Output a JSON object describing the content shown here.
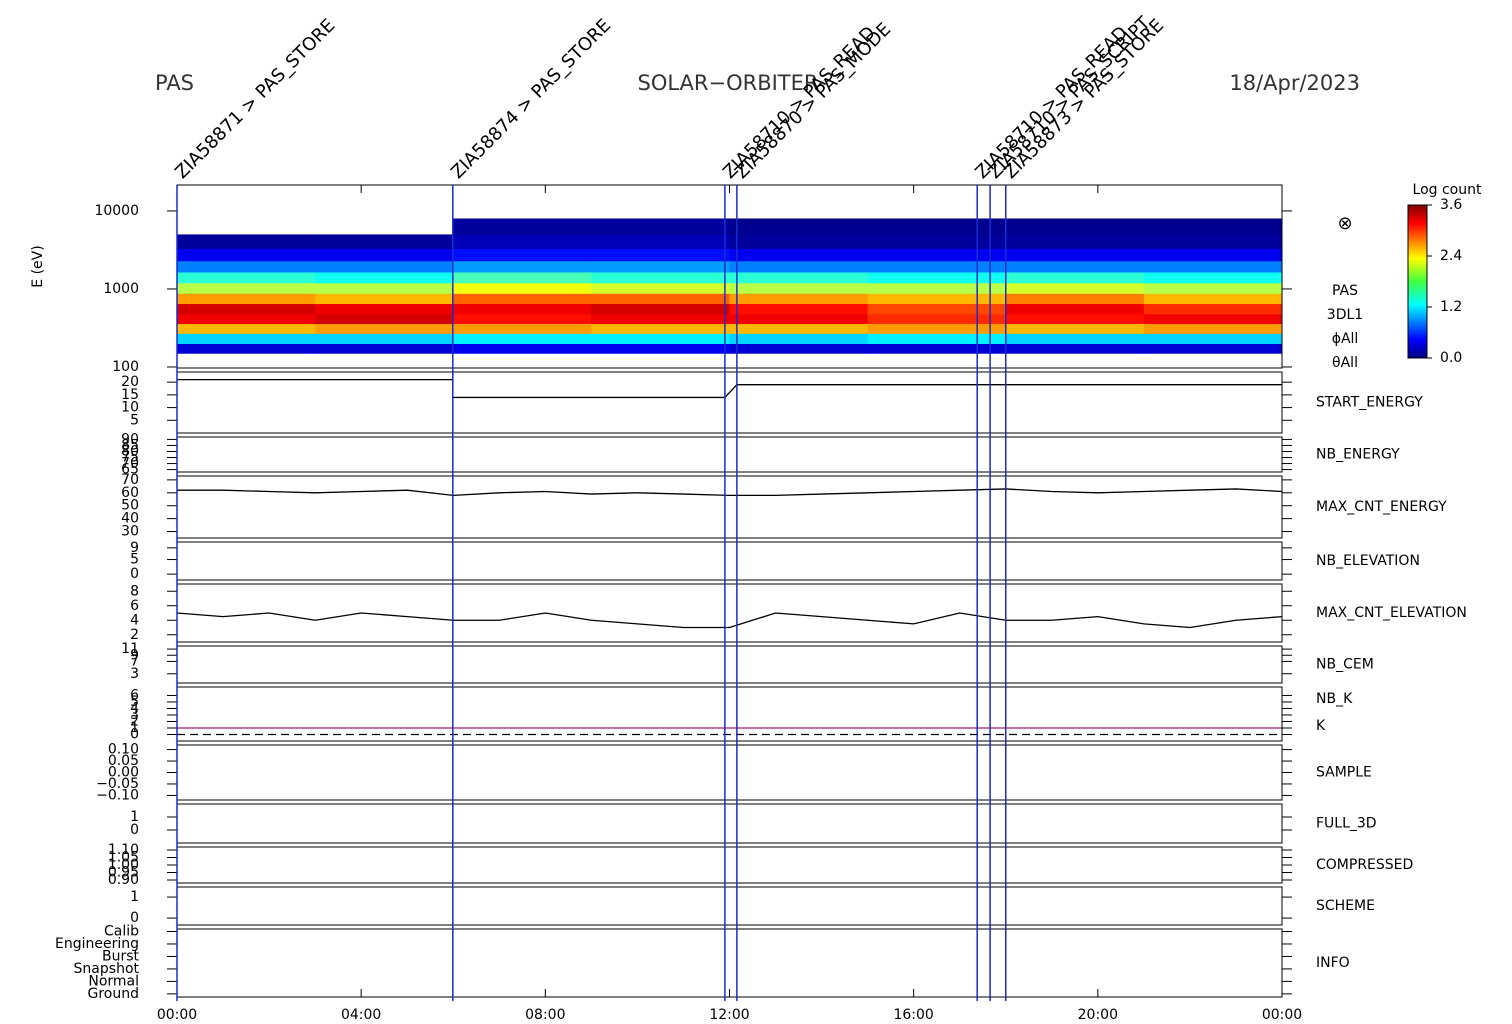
{
  "header": {
    "left": "PAS",
    "center": "SOLAR−ORBITER",
    "right": "18/Apr/2023"
  },
  "time_axis": {
    "xlim": [
      0,
      24
    ],
    "xticks": [
      {
        "value": 0,
        "label": "00:00"
      },
      {
        "value": 4,
        "label": "04:00"
      },
      {
        "value": 8,
        "label": "08:00"
      },
      {
        "value": 12,
        "label": "12:00"
      },
      {
        "value": 16,
        "label": "16:00"
      },
      {
        "value": 20,
        "label": "20:00"
      },
      {
        "value": 24,
        "label": "00:00"
      }
    ]
  },
  "events": [
    {
      "x": 0.0,
      "label": "ZIA58871 > PAS_STORE"
    },
    {
      "x": 5.99,
      "label": "ZIA58874 > PAS_STORE"
    },
    {
      "x": 11.9,
      "label": "ZIA58710 > PAS_READ"
    },
    {
      "x": 12.16,
      "label": "ZIA58870 > PAS_MODE"
    },
    {
      "x": 17.38,
      "label": "ZIA58710 > PAS_READ"
    },
    {
      "x": 17.66,
      "label": "ZIA58710 > PAS_SCRIPT"
    },
    {
      "x": 18.0,
      "label": "ZIA58873 > PAS_STORE"
    }
  ],
  "colorbar": {
    "title": "Log count",
    "ylim": [
      0,
      3.6
    ],
    "ticks": [
      {
        "value": 0,
        "label": "0.0"
      },
      {
        "value": 1.2,
        "label": "1.2"
      },
      {
        "value": 2.4,
        "label": "2.4"
      },
      {
        "value": 3.6,
        "label": "3.6"
      }
    ]
  },
  "chart_data": [
    {
      "type": "heatmap",
      "ylabel": "E (eV)",
      "log": true,
      "ylim": [
        97,
        21500
      ],
      "yticks": [
        100,
        1000,
        10000
      ],
      "labels": [
        "PAS",
        "3DL1",
        "ϕAll",
        "θAll"
      ],
      "label_color": "#000000",
      "x": [
        0,
        3,
        6,
        9,
        12,
        15,
        18,
        21,
        24
      ],
      "y": [
        150,
        200,
        270,
        360,
        480,
        650,
        880,
        1200,
        1650,
        2300,
        3300,
        5000,
        8000
      ],
      "z": [
        [
          0.3,
          1.2,
          2.5,
          3.2,
          3.3,
          2.6,
          2.0,
          1.5,
          0.9,
          0.4,
          0.1,
          null
        ],
        [
          0.3,
          1.2,
          2.6,
          3.3,
          3.2,
          2.5,
          2.0,
          1.4,
          0.9,
          0.4,
          0.1,
          null
        ],
        [
          0.4,
          1.3,
          2.6,
          3.1,
          3.2,
          2.8,
          2.2,
          1.6,
          1.0,
          0.5,
          0.2,
          0.1
        ],
        [
          0.4,
          1.3,
          2.5,
          3.2,
          3.3,
          2.8,
          2.1,
          1.5,
          1.0,
          0.5,
          0.2,
          0.1
        ],
        [
          0.3,
          1.2,
          2.5,
          3.2,
          3.1,
          2.6,
          2.0,
          1.5,
          0.9,
          0.4,
          0.1,
          0.05
        ],
        [
          0.3,
          1.3,
          2.6,
          3.0,
          2.9,
          2.5,
          2.0,
          1.4,
          0.9,
          0.4,
          0.1,
          0.05
        ],
        [
          0.3,
          1.2,
          2.5,
          3.1,
          3.2,
          2.7,
          2.1,
          1.5,
          0.9,
          0.4,
          0.1,
          0.05
        ],
        [
          0.3,
          1.2,
          2.6,
          3.2,
          3.0,
          2.5,
          2.0,
          1.4,
          0.9,
          0.4,
          0.1,
          0.05
        ]
      ]
    },
    {
      "type": "line",
      "ylim": [
        0,
        24
      ],
      "yticks": [
        5,
        10,
        15,
        20
      ],
      "labels": [
        "START_ENERGY"
      ],
      "label_color": "#000000",
      "series": [
        {
          "color": "#000000",
          "x": [
            0,
            5.99,
            5.99,
            11.9,
            12.16,
            24
          ],
          "values": [
            21,
            21,
            14,
            14,
            19,
            19
          ]
        }
      ]
    },
    {
      "type": "line",
      "ylim": [
        63,
        92
      ],
      "yticks": [
        65,
        70,
        75,
        80,
        85,
        90
      ],
      "labels": [
        "NB_ENERGY"
      ],
      "label_color": "#2020c0",
      "series": []
    },
    {
      "type": "line",
      "ylim": [
        25,
        73
      ],
      "yticks": [
        30,
        40,
        50,
        60,
        70
      ],
      "labels": [
        "MAX_CNT_ENERGY"
      ],
      "label_color": "#000000",
      "series": [
        {
          "color": "#000000",
          "x": [
            0,
            1,
            2,
            3,
            4,
            5,
            6,
            7,
            8,
            9,
            10,
            11,
            12,
            13,
            14,
            15,
            16,
            17,
            18,
            19,
            20,
            21,
            22,
            23,
            24
          ],
          "values": [
            62,
            62,
            61,
            60,
            61,
            62,
            58,
            60,
            61,
            59,
            60,
            59,
            58,
            58,
            59,
            60,
            61,
            62,
            63,
            61,
            60,
            61,
            62,
            63,
            61
          ]
        }
      ]
    },
    {
      "type": "line",
      "ylim": [
        -2,
        11
      ],
      "yticks": [
        0,
        5,
        9
      ],
      "labels": [
        "NB_ELEVATION"
      ],
      "label_color": "#2020c0",
      "series": []
    },
    {
      "type": "line",
      "ylim": [
        1,
        9
      ],
      "yticks": [
        2,
        4,
        6,
        8
      ],
      "labels": [
        "MAX_CNT_ELEVATION"
      ],
      "label_color": "#000000",
      "series": [
        {
          "color": "#000000",
          "x": [
            0,
            1,
            2,
            3,
            4,
            5,
            6,
            7,
            8,
            9,
            10,
            11,
            12,
            13,
            14,
            15,
            16,
            17,
            18,
            19,
            20,
            21,
            22,
            23,
            24
          ],
          "values": [
            5,
            4.5,
            5,
            4,
            5,
            4.5,
            4,
            4,
            5,
            4,
            3.5,
            3,
            3,
            5,
            4.5,
            4,
            3.5,
            5,
            4,
            4,
            4.5,
            3.5,
            3,
            4,
            4.5
          ]
        }
      ]
    },
    {
      "type": "line",
      "ylim": [
        0,
        12
      ],
      "yticks": [
        3,
        7,
        9,
        11
      ],
      "labels": [
        "NB_CEM"
      ],
      "label_color": "#2020c0",
      "series": []
    },
    {
      "type": "line",
      "ylim": [
        -1,
        7.3
      ],
      "yticks": [
        0,
        1,
        2,
        3,
        4,
        5,
        6
      ],
      "labels": [
        "NB_K",
        "K"
      ],
      "label_color": [
        "#d02020",
        "#2020c0"
      ],
      "series": [
        {
          "color": "#a0206a",
          "x": [
            0,
            24
          ],
          "values": [
            1,
            1
          ]
        },
        {
          "color": "#000000",
          "dash": true,
          "x": [
            0,
            24
          ],
          "values": [
            0,
            0
          ]
        }
      ]
    },
    {
      "type": "line",
      "ylim": [
        -0.12,
        0.12
      ],
      "yticks": [
        {
          "value": 0.1,
          "label": "0.10"
        },
        {
          "value": 0.05,
          "label": "0.05"
        },
        {
          "value": 0,
          "label": "0.00"
        },
        {
          "value": -0.05,
          "label": "−0.05"
        },
        {
          "value": -0.1,
          "label": "−0.10"
        }
      ],
      "labels": [
        "SAMPLE"
      ],
      "label_color": "#2020c0",
      "series": []
    },
    {
      "type": "line",
      "ylim": [
        -1,
        2
      ],
      "yticks": [
        0,
        1
      ],
      "labels": [
        "FULL_3D"
      ],
      "label_color": "#2020c0",
      "series": []
    },
    {
      "type": "line",
      "ylim": [
        0.88,
        1.12
      ],
      "yticks": [
        {
          "value": 0.9,
          "label": "0.90"
        },
        {
          "value": 0.95,
          "label": "0.95"
        },
        {
          "value": 1,
          "label": "1.00"
        },
        {
          "value": 1.05,
          "label": "1.05"
        },
        {
          "value": 1.1,
          "label": "1.10"
        }
      ],
      "labels": [
        "COMPRESSED"
      ],
      "label_color": "#000000",
      "series": []
    },
    {
      "type": "line",
      "ylim": [
        -0.33,
        1.48
      ],
      "yticks": [
        0,
        1
      ],
      "labels": [
        "SCHEME"
      ],
      "label_color": "#000000",
      "series": []
    },
    {
      "type": "line",
      "ylim": [
        -0.25,
        5.2
      ],
      "yticks": [
        {
          "value": 5,
          "label": "Calib"
        },
        {
          "value": 4,
          "label": "Engineering"
        },
        {
          "value": 3,
          "label": "Burst"
        },
        {
          "value": 2,
          "label": "Snapshot"
        },
        {
          "value": 1,
          "label": "Normal"
        },
        {
          "value": 0,
          "label": "Ground"
        }
      ],
      "labels": [
        "INFO"
      ],
      "label_color": "#000000",
      "series": []
    }
  ]
}
